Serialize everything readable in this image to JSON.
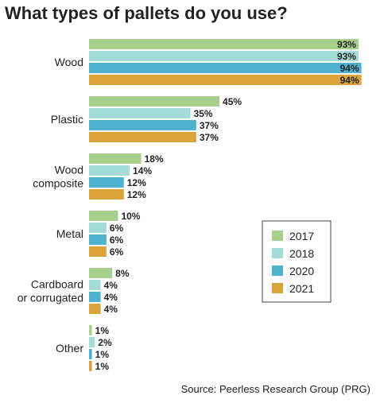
{
  "chart_data": {
    "type": "bar",
    "orientation": "horizontal",
    "title": "What types of pallets do you use?",
    "categories": [
      "Wood",
      "Plastic",
      "Wood composite",
      "Metal",
      "Cardboard or corrugated",
      "Other"
    ],
    "category_lines": [
      [
        "Wood"
      ],
      [
        "Plastic"
      ],
      [
        "Wood",
        "composite"
      ],
      [
        "Metal"
      ],
      [
        "Cardboard",
        "or corrugated"
      ],
      [
        "Other"
      ]
    ],
    "series": [
      {
        "name": "2017",
        "color": "#a9d18e",
        "values": [
          93,
          45,
          18,
          10,
          8,
          1
        ],
        "labels": [
          "93%",
          "45%",
          "18%",
          "10%",
          "8%",
          "1%"
        ]
      },
      {
        "name": "2018",
        "color": "#a6dcd8",
        "values": [
          93,
          35,
          14,
          6,
          4,
          2
        ],
        "labels": [
          "93%",
          "35%",
          "14%",
          "6%",
          "4%",
          "2%"
        ]
      },
      {
        "name": "2020",
        "color": "#4fb3cf",
        "values": [
          94,
          37,
          12,
          6,
          4,
          1
        ],
        "labels": [
          "94%",
          "37%",
          "12%",
          "6%",
          "4%",
          "1%"
        ]
      },
      {
        "name": "2021",
        "color": "#dba33c",
        "values": [
          94,
          37,
          12,
          6,
          4,
          1
        ],
        "labels": [
          "94%",
          "37%",
          "12%",
          "6%",
          "4%",
          "1%"
        ]
      }
    ],
    "xlim": [
      0,
      100
    ],
    "xlabel": "",
    "ylabel": "",
    "grid": false,
    "legend_position": "bottom-right",
    "source": "Source: Peerless Research Group (PRG)"
  }
}
